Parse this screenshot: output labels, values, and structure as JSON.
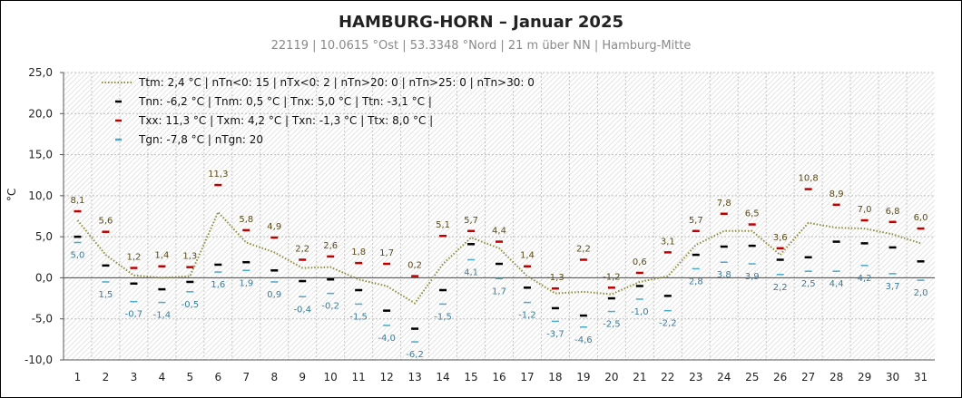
{
  "chart_data": {
    "type": "line",
    "title": "HAMBURG-HORN   –   Januar  2025",
    "subtitle": "22119  |  10.0615 °Ost  |  53.3348 °Nord   | 21 m über NN   |  Hamburg-Mitte",
    "ylabel": "°C",
    "ylim": [
      -10,
      25
    ],
    "yticks": [
      "25,0",
      "20,0",
      "15,0",
      "10,0",
      "5,0",
      "0,0",
      "-5,0",
      "-10,0"
    ],
    "ytick_values": [
      25,
      20,
      15,
      10,
      5,
      0,
      -5,
      -10
    ],
    "x": [
      1,
      2,
      3,
      4,
      5,
      6,
      7,
      8,
      9,
      10,
      11,
      12,
      13,
      14,
      15,
      16,
      17,
      18,
      19,
      20,
      21,
      22,
      23,
      24,
      25,
      26,
      27,
      28,
      29,
      30,
      31
    ],
    "grid": true,
    "legend_position": "top-left",
    "legend": [
      {
        "marker": "dotted",
        "color": "#8f8f3c",
        "text": "Ttm:  2,4 °C  |  nTn<0: 15   |  nTx<0: 2  | nTn>20: 0   |  nTn>25: 0   |  nTn>30: 0"
      },
      {
        "marker": "dash",
        "color": "#000000",
        "text": "Tnn:  -6,2 °C  |  Tnm: 0,5 °C  |  Tnx: 5,0 °C  |  Ttn: -3,1 °C  |"
      },
      {
        "marker": "dash",
        "color": "#c00000",
        "text": "Txx:  11,3 °C  |  Txm: 4,2 °C  |  Txn: -1,3 °C  |  Ttx: 8,0 °C  |"
      },
      {
        "marker": "dash",
        "color": "#4aa8c8",
        "text": "Tgn: -7,8 °C  |  nTgn: 20"
      }
    ],
    "series": [
      {
        "key": "tx",
        "color": "#c00000",
        "values": [
          8.1,
          5.6,
          1.2,
          1.4,
          1.3,
          11.3,
          5.8,
          4.9,
          2.2,
          2.6,
          1.8,
          1.7,
          0.2,
          5.1,
          5.7,
          4.4,
          1.4,
          -1.3,
          2.2,
          -1.2,
          0.6,
          3.1,
          5.7,
          7.8,
          6.5,
          3.6,
          10.8,
          8.9,
          7.0,
          6.8,
          6.0
        ],
        "labels": [
          "8,1",
          "5,6",
          "1,2",
          "1,4",
          "1,3",
          "11,3",
          "5,8",
          "4,9",
          "2,2",
          "2,6",
          "1,8",
          "1,7",
          "0,2",
          "5,1",
          "5,7",
          "4,4",
          "1,4",
          "-1,3",
          "2,2",
          "-1,2",
          "0,6",
          "3,1",
          "5,7",
          "7,8",
          "6,5",
          "3,6",
          "10,8",
          "8,9",
          "7,0",
          "6,8",
          "6,0"
        ]
      },
      {
        "key": "tn",
        "color": "#000000",
        "values": [
          5.0,
          1.5,
          -0.7,
          -1.4,
          -0.5,
          1.6,
          1.9,
          0.9,
          -0.4,
          -0.2,
          -1.5,
          -4.0,
          -6.2,
          -1.5,
          4.1,
          1.7,
          -1.2,
          -3.7,
          -4.6,
          -2.5,
          -1.0,
          -2.2,
          2.8,
          3.8,
          3.9,
          2.2,
          2.5,
          4.4,
          4.2,
          3.7,
          2.0
        ],
        "labels": [
          "5,0",
          "1,5",
          "-0,7",
          "-1,4",
          "-0,5",
          "1,6",
          "1,9",
          "0,9",
          "-0,4",
          "-0,2",
          "-1,5",
          "-4,0",
          "-6,2",
          "-1,5",
          "4,1",
          "1,7",
          "-1,2",
          "-3,7",
          "-4,6",
          "-2,5",
          "-1,0",
          "-2,2",
          "2,8",
          "3,8",
          "3,9",
          "2,2",
          "2,5",
          "4,4",
          "4,2",
          "3,7",
          "2,0"
        ]
      },
      {
        "key": "tg",
        "color": "#4aa8c8",
        "values": [
          4.3,
          -0.5,
          -2.9,
          -3.0,
          -1.7,
          0.7,
          0.9,
          -0.5,
          -2.3,
          -1.9,
          -3.2,
          -5.8,
          -7.8,
          -3.2,
          2.2,
          -0.1,
          -3.0,
          -5.3,
          -6.0,
          -4.1,
          -2.6,
          -4.0,
          1.1,
          1.9,
          1.7,
          0.4,
          0.8,
          0.8,
          1.5,
          0.5,
          -0.3
        ]
      },
      {
        "key": "tm",
        "color": "#8f8f3c",
        "values": [
          7.0,
          2.8,
          0.3,
          0.0,
          0.2,
          8.0,
          4.3,
          3.1,
          1.2,
          1.3,
          -0.2,
          -1.0,
          -3.1,
          1.7,
          4.9,
          3.6,
          0.2,
          -1.9,
          -1.7,
          -2.0,
          -0.5,
          0.2,
          4.0,
          5.7,
          5.7,
          2.8,
          6.7,
          6.1,
          6.0,
          5.3,
          4.2
        ]
      }
    ]
  }
}
